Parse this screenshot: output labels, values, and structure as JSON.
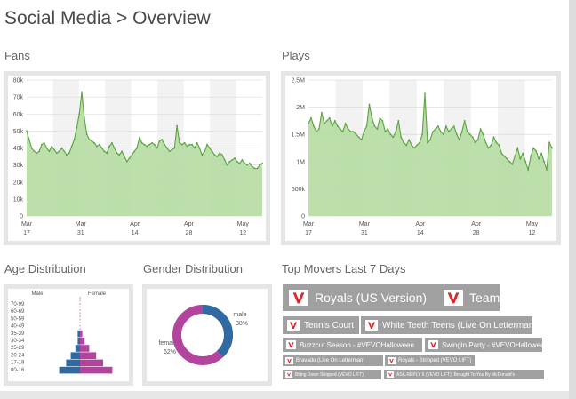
{
  "header": {
    "title": "Social Media > Overview"
  },
  "sections": {
    "fans": "Fans",
    "plays": "Plays",
    "age": "Age Distribution",
    "gender": "Gender Distribution",
    "movers": "Top Movers Last 7 Days"
  },
  "colors": {
    "area_fill": "#b5dba3",
    "line": "#5aa33f",
    "male": "#2f6aa3",
    "female": "#b3449e",
    "tag_bg": "#a0a0a0",
    "vevo_red": "#e0242a"
  },
  "fans_chart": {
    "y_ticks": [
      "0",
      "10k",
      "20k",
      "30k",
      "40k",
      "50k",
      "60k",
      "70k",
      "80k"
    ],
    "x_ticks": [
      {
        "month": "Mar",
        "day": "17"
      },
      {
        "month": "Mar",
        "day": "31"
      },
      {
        "month": "Apr",
        "day": "14"
      },
      {
        "month": "Apr",
        "day": "28"
      },
      {
        "month": "May",
        "day": "12"
      }
    ]
  },
  "plays_chart": {
    "y_ticks": [
      "0",
      "500k",
      "1M",
      "1.5M",
      "2M",
      "2.5M"
    ],
    "x_ticks": [
      {
        "month": "Mar",
        "day": "17"
      },
      {
        "month": "Mar",
        "day": "31"
      },
      {
        "month": "Apr",
        "day": "14"
      },
      {
        "month": "Apr",
        "day": "28"
      },
      {
        "month": "May",
        "day": "12"
      }
    ]
  },
  "chart_data": [
    {
      "type": "area",
      "ylim": [
        0,
        80000
      ],
      "x_start": "Mar 17",
      "x_end": "May 17",
      "values": [
        50000,
        45000,
        40000,
        38000,
        37000,
        38000,
        42000,
        43000,
        40000,
        38000,
        41000,
        39000,
        37000,
        38000,
        40000,
        38000,
        36000,
        37000,
        41000,
        45000,
        52000,
        60000,
        73000,
        58000,
        48000,
        45000,
        44000,
        43000,
        41000,
        42000,
        40000,
        38000,
        37000,
        41000,
        43000,
        40000,
        37000,
        36000,
        38000,
        35000,
        32000,
        34000,
        36000,
        38000,
        40000,
        46000,
        43000,
        42000,
        41000,
        42000,
        43000,
        42000,
        40000,
        44000,
        45000,
        42000,
        40000,
        38000,
        39000,
        40000,
        53000,
        43000,
        42000,
        43000,
        41000,
        42000,
        42000,
        40000,
        43000,
        40000,
        36000,
        38000,
        42000,
        40000,
        38000,
        36000,
        35000,
        37000,
        36000,
        33000,
        30000,
        32000,
        33000,
        34000,
        32000,
        31000,
        33000,
        31000,
        30000,
        31000,
        29000,
        28000,
        28000,
        30000,
        31000
      ],
      "y_tick_labels": [
        "0",
        "10k",
        "20k",
        "30k",
        "40k",
        "50k",
        "60k",
        "70k",
        "80k"
      ],
      "x_tick_labels": [
        "Mar 17",
        "Mar 31",
        "Apr 14",
        "Apr 28",
        "May 12"
      ]
    },
    {
      "type": "area",
      "ylim": [
        0,
        2500000
      ],
      "x_start": "Mar 17",
      "x_end": "May 17",
      "values": [
        1700000,
        1800000,
        1650000,
        1550000,
        1600000,
        1900000,
        1700000,
        1750000,
        1800000,
        1650000,
        1750000,
        1650000,
        1600000,
        1550000,
        1700000,
        1600000,
        1550000,
        1550000,
        1500000,
        1450000,
        1400000,
        1550000,
        1650000,
        2050000,
        1800000,
        1650000,
        1600000,
        1800000,
        1750000,
        1550000,
        1600000,
        1500000,
        1450000,
        1550000,
        1750000,
        1450000,
        1350000,
        1300000,
        1400000,
        1300000,
        1250000,
        1300000,
        1350000,
        1500000,
        2250000,
        1350000,
        1400000,
        1550000,
        1600000,
        1650000,
        1550000,
        1500000,
        1650000,
        1550000,
        1600000,
        1650000,
        1500000,
        1400000,
        1550000,
        1750000,
        1550000,
        1500000,
        1450000,
        1350000,
        1400000,
        1600000,
        1500000,
        1350000,
        1250000,
        1300000,
        1450000,
        1350000,
        1300000,
        1150000,
        1100000,
        1050000,
        1000000,
        950000,
        1100000,
        1250000,
        1050000,
        1150000,
        1000000,
        850000,
        1100000,
        1250000,
        1200000,
        1050000,
        1150000,
        1000000,
        850000,
        1350000,
        1250000
      ],
      "y_tick_labels": [
        "0",
        "500k",
        "1M",
        "1.5M",
        "2M",
        "2.5M"
      ],
      "x_tick_labels": [
        "Mar 17",
        "Mar 31",
        "Apr 14",
        "Apr 28",
        "May 12"
      ]
    }
  ],
  "age": {
    "male_label": "Male",
    "female_label": "Female",
    "groups": [
      {
        "label": "70-99",
        "male": 0,
        "female": 0
      },
      {
        "label": "60-69",
        "male": 0,
        "female": 0
      },
      {
        "label": "50-59",
        "male": 0,
        "female": 0
      },
      {
        "label": "40-49",
        "male": 0,
        "female": 0
      },
      {
        "label": "35-39",
        "male": 1,
        "female": 1
      },
      {
        "label": "30-34",
        "male": 1,
        "female": 2
      },
      {
        "label": "25-29",
        "male": 2,
        "female": 4
      },
      {
        "label": "20-24",
        "male": 4,
        "female": 7
      },
      {
        "label": "17-19",
        "male": 6,
        "female": 10
      },
      {
        "label": "00-16",
        "male": 9,
        "female": 14
      }
    ]
  },
  "gender": {
    "male_label": "male",
    "male_pct": "38%",
    "female_label": "female",
    "female_pct": "62%",
    "male_value": 38,
    "female_value": 62
  },
  "movers": [
    {
      "label": "Royals (US Version)",
      "size": "xl"
    },
    {
      "label": "Team",
      "size": "xl"
    },
    {
      "label": "Tennis Court",
      "size": "md"
    },
    {
      "label": "White Teeth Teens (Live On Letterman)",
      "size": "md"
    },
    {
      "label": "Buzzcut Season - #VEVOHalloween",
      "size": "sm"
    },
    {
      "label": "Swingin Party - #VEVOHalloween",
      "size": "sm"
    },
    {
      "label": "Bravado (Live On Letterman)",
      "size": "xs"
    },
    {
      "label": "Royals - Stripped (VEVO LIFT)",
      "size": "xs"
    },
    {
      "label": "Biting Down Stripped (VEVO LIFT)",
      "size": "xxs"
    },
    {
      "label": "ASK.REPLY 6 (VEVO LIFT): Brought To You By McDonald's",
      "size": "xxs"
    }
  ]
}
